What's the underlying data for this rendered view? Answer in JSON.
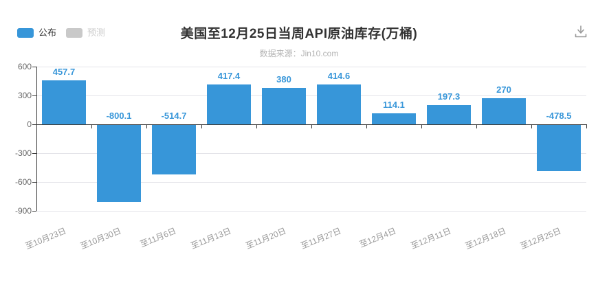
{
  "header": {
    "title": "美国至12月25日当周API原油库存(万桶)",
    "source": "数据来源：Jin10.com"
  },
  "legend": {
    "items": [
      {
        "label": "公布",
        "color": "#3796d9",
        "text_color": "#333333",
        "active": true
      },
      {
        "label": "预测",
        "color": "#c9c9c9",
        "text_color": "#cccccc",
        "active": false
      }
    ]
  },
  "toolbar": {
    "icons": [
      {
        "name": "download-icon",
        "color": "#999999"
      }
    ]
  },
  "chart_data": {
    "type": "bar",
    "title": "美国至12月25日当周API原油库存(万桶)",
    "subtitle": "数据来源：Jin10.com",
    "series_name": "公布",
    "categories": [
      "至10月23日",
      "至10月30日",
      "至11月6日",
      "至11月13日",
      "至11月20日",
      "至11月27日",
      "至12月4日",
      "至12月11日",
      "至12月18日",
      "至12月25日"
    ],
    "values": [
      457.7,
      -800.1,
      -514.7,
      417.4,
      380,
      414.6,
      114.1,
      197.3,
      270,
      -478.5
    ],
    "yticks": [
      600,
      300,
      0,
      -300,
      -600,
      -900
    ],
    "ylim": [
      -900,
      600
    ],
    "grid": true,
    "legend_position": "top-left",
    "xlabel": "",
    "ylabel": "",
    "colors": {
      "bar": "#3796d9",
      "value_label": "#3796d9",
      "axis": "#3c3c3c",
      "grid": "#e4e4e9",
      "axis_label": "#666666",
      "category_label": "#999999"
    }
  }
}
